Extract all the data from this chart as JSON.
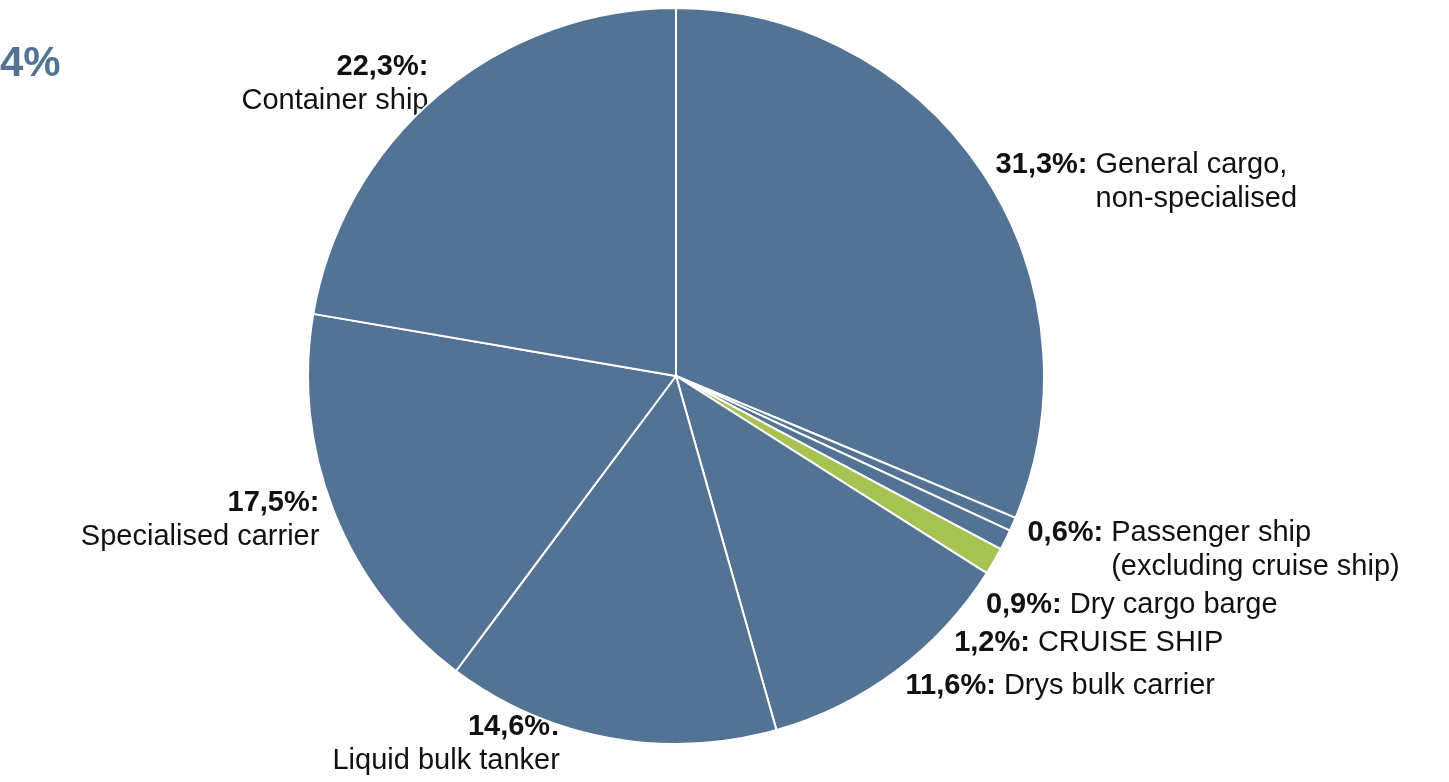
{
  "chart_data": {
    "type": "pie",
    "categories": [
      "General cargo, non-specialised",
      "Passenger ship (excluding cruise ship)",
      "Dry cargo barge",
      "CRUISE SHIP",
      "Drys bulk carrier",
      "Liquid bulk tanker",
      "Specialised carrier",
      "Container ship"
    ],
    "values": [
      31.3,
      0.6,
      0.9,
      1.2,
      11.6,
      14.6,
      17.5,
      22.3
    ],
    "value_labels": [
      "31,3%:",
      "0,6%:",
      "0,9%:",
      "1,2%:",
      "11,6%:",
      "14,6%:",
      "17,5%:",
      "22,3%:"
    ],
    "colors": [
      "#527394",
      "#527394",
      "#527394",
      "#a6c251",
      "#527394",
      "#527394",
      "#527394",
      "#527394"
    ],
    "annotations": [
      "4%"
    ],
    "legend": false
  }
}
